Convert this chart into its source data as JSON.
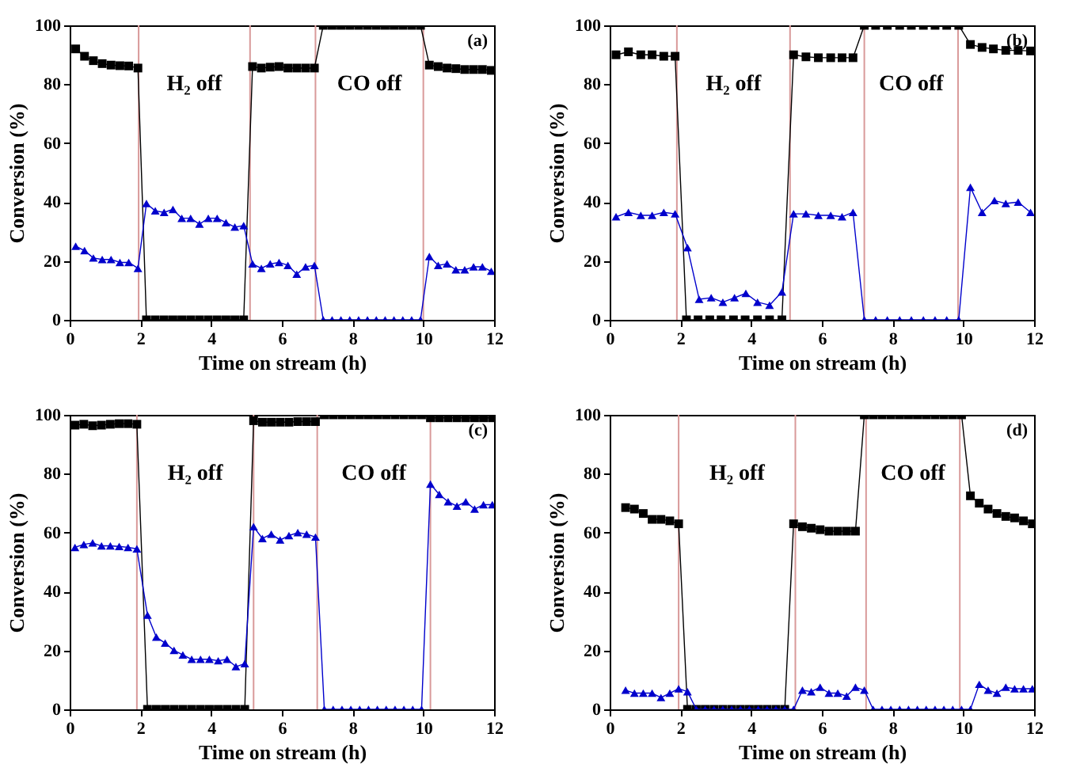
{
  "chart_data": [
    {
      "type": "line",
      "xlabel": "Time on stream (h)",
      "ylabel": "Conversion (%)",
      "xlim": [
        0,
        12
      ],
      "xticks": [
        0,
        2,
        4,
        6,
        8,
        10,
        12
      ],
      "ylim": [
        0,
        100
      ],
      "yticks": [
        0,
        20,
        40,
        60,
        80,
        100
      ],
      "annotations": [
        "H₂ off",
        "CO off",
        "(a)"
      ],
      "ref_lines": [
        {
          "axis": "x",
          "value": 1.95,
          "color": "#d99a9a"
        },
        {
          "axis": "x",
          "value": 5.1,
          "color": "#d99a9a"
        },
        {
          "axis": "x",
          "value": 6.95,
          "color": "#d99a9a"
        },
        {
          "axis": "x",
          "value": 10.0,
          "color": "#d99a9a"
        }
      ],
      "series": [
        {
          "color": "#000000",
          "marker": "square",
          "x": [
            0.17,
            0.42,
            0.67,
            0.92,
            1.17,
            1.42,
            1.67,
            1.93,
            2.17,
            2.42,
            2.67,
            2.92,
            3.17,
            3.42,
            3.67,
            3.92,
            4.17,
            4.42,
            4.67,
            4.92,
            5.17,
            5.42,
            5.67,
            5.92,
            6.17,
            6.42,
            6.67,
            6.92,
            7.17,
            7.42,
            7.67,
            7.92,
            8.17,
            8.42,
            8.67,
            8.92,
            9.17,
            9.42,
            9.67,
            9.92,
            10.17,
            10.42,
            10.67,
            10.92,
            11.17,
            11.42,
            11.67,
            11.92
          ],
          "values": [
            92,
            89.5,
            88,
            87,
            86.5,
            86.3,
            86.2,
            85.5,
            0,
            0,
            0,
            0,
            0,
            0,
            0,
            0,
            0,
            0,
            0,
            0,
            86,
            85.5,
            85.8,
            86,
            85.5,
            85.5,
            85.5,
            85.5,
            100,
            100,
            100,
            100,
            100,
            100,
            100,
            100,
            100,
            100,
            100,
            100,
            86.5,
            86,
            85.5,
            85.3,
            85,
            85,
            85,
            84.7
          ]
        },
        {
          "color": "#0000cc",
          "marker": "triangle",
          "x": [
            0.17,
            0.42,
            0.67,
            0.92,
            1.17,
            1.42,
            1.67,
            1.93,
            2.17,
            2.42,
            2.67,
            2.92,
            3.17,
            3.42,
            3.67,
            3.92,
            4.17,
            4.42,
            4.67,
            4.92,
            5.17,
            5.42,
            5.67,
            5.92,
            6.17,
            6.42,
            6.67,
            6.92,
            7.17,
            7.42,
            7.67,
            7.92,
            8.17,
            8.42,
            8.67,
            8.92,
            9.17,
            9.42,
            9.67,
            9.92,
            10.17,
            10.42,
            10.67,
            10.92,
            11.17,
            11.42,
            11.67,
            11.92
          ],
          "values": [
            25,
            23.5,
            21,
            20.5,
            20.5,
            19.5,
            19.5,
            17.5,
            39.5,
            37,
            36.5,
            37.5,
            34.5,
            34.5,
            32.5,
            34.5,
            34.5,
            33,
            31.5,
            32,
            19,
            17.5,
            19,
            19.5,
            18.5,
            15.5,
            18,
            18.5,
            0,
            0,
            0,
            0,
            0,
            0,
            0,
            0,
            0,
            0,
            0,
            0,
            21.5,
            18.5,
            19,
            17,
            17,
            18,
            18,
            16.5
          ]
        }
      ]
    },
    {
      "type": "line",
      "xlabel": "Time on stream (h)",
      "ylabel": "Conversion (%)",
      "xlim": [
        0,
        12
      ],
      "xticks": [
        0,
        2,
        4,
        6,
        8,
        10,
        12
      ],
      "ylim": [
        0,
        100
      ],
      "yticks": [
        0,
        20,
        40,
        60,
        80,
        100
      ],
      "annotations": [
        "H₂ off",
        "CO off",
        "(b)"
      ],
      "ref_lines": [
        {
          "axis": "x",
          "value": 1.9,
          "color": "#d99a9a"
        },
        {
          "axis": "x",
          "value": 5.1,
          "color": "#d99a9a"
        },
        {
          "axis": "x",
          "value": 7.2,
          "color": "#d99a9a"
        },
        {
          "axis": "x",
          "value": 9.85,
          "color": "#d99a9a"
        }
      ],
      "series": [
        {
          "color": "#000000",
          "marker": "square",
          "x": [
            0.18,
            0.53,
            0.88,
            1.2,
            1.53,
            1.85,
            2.17,
            2.5,
            2.83,
            3.15,
            3.5,
            3.83,
            4.18,
            4.52,
            4.87,
            5.2,
            5.55,
            5.9,
            6.25,
            6.57,
            6.88,
            7.2,
            7.52,
            7.85,
            8.2,
            8.53,
            8.87,
            9.2,
            9.53,
            9.87,
            10.2,
            10.53,
            10.85,
            11.2,
            11.55,
            11.9
          ],
          "values": [
            90,
            91,
            90,
            90,
            89.5,
            89.5,
            0,
            0,
            0,
            0,
            0,
            0,
            0,
            0,
            0,
            90,
            89.3,
            89,
            89,
            89,
            89,
            100,
            100,
            100,
            100,
            100,
            100,
            100,
            100,
            100,
            93.5,
            92.5,
            92,
            91.5,
            91.5,
            91.3
          ]
        },
        {
          "color": "#0000cc",
          "marker": "triangle",
          "x": [
            0.18,
            0.53,
            0.88,
            1.2,
            1.53,
            1.85,
            2.2,
            2.53,
            2.87,
            3.2,
            3.53,
            3.85,
            4.18,
            4.52,
            4.87,
            5.2,
            5.55,
            5.9,
            6.25,
            6.57,
            6.88,
            7.2,
            7.52,
            7.85,
            8.2,
            8.53,
            8.87,
            9.2,
            9.53,
            9.87,
            10.2,
            10.53,
            10.88,
            11.2,
            11.55,
            11.9
          ],
          "values": [
            35,
            36.5,
            35.5,
            35.5,
            36.5,
            36,
            24.5,
            7,
            7.5,
            6,
            7.5,
            9,
            6,
            5,
            9.5,
            36,
            36,
            35.5,
            35.5,
            35,
            36.5,
            0,
            0,
            0,
            0,
            0,
            0,
            0,
            0,
            0,
            45,
            36.5,
            40.5,
            39.5,
            40,
            36.5
          ]
        }
      ]
    },
    {
      "type": "line",
      "xlabel": "Time on stream (h)",
      "ylabel": "Conversion (%)",
      "xlim": [
        0,
        12
      ],
      "xticks": [
        0,
        2,
        4,
        6,
        8,
        10,
        12
      ],
      "ylim": [
        0,
        100
      ],
      "yticks": [
        0,
        20,
        40,
        60,
        80,
        100
      ],
      "annotations": [
        "H₂ off",
        "CO off",
        "(c)"
      ],
      "ref_lines": [
        {
          "axis": "x",
          "value": 1.9,
          "color": "#d99a9a"
        },
        {
          "axis": "x",
          "value": 5.2,
          "color": "#d99a9a"
        },
        {
          "axis": "x",
          "value": 7.0,
          "color": "#d99a9a"
        },
        {
          "axis": "x",
          "value": 10.2,
          "color": "#d99a9a"
        }
      ],
      "series": [
        {
          "color": "#000000",
          "marker": "square",
          "x": [
            0.15,
            0.4,
            0.65,
            0.9,
            1.15,
            1.4,
            1.65,
            1.9,
            2.2,
            2.45,
            2.7,
            2.95,
            3.2,
            3.45,
            3.7,
            3.95,
            4.2,
            4.45,
            4.7,
            4.95,
            5.2,
            5.45,
            5.7,
            5.95,
            6.2,
            6.45,
            6.7,
            6.95,
            7.2,
            7.45,
            7.7,
            7.95,
            8.2,
            8.45,
            8.7,
            8.95,
            9.2,
            9.45,
            9.7,
            9.95,
            10.2,
            10.45,
            10.7,
            10.95,
            11.2,
            11.45,
            11.7,
            11.95
          ],
          "values": [
            96.5,
            96.8,
            96.3,
            96.5,
            96.8,
            97,
            97,
            96.8,
            0,
            0,
            0,
            0,
            0,
            0,
            0,
            0,
            0,
            0,
            0,
            0,
            98,
            97.5,
            97.5,
            97.5,
            97.5,
            97.7,
            97.7,
            97.7,
            100,
            100,
            100,
            100,
            100,
            100,
            100,
            100,
            100,
            100,
            100,
            100,
            99,
            99,
            99,
            99,
            99,
            99,
            99,
            99
          ]
        },
        {
          "color": "#0000cc",
          "marker": "triangle",
          "x": [
            0.15,
            0.4,
            0.65,
            0.9,
            1.15,
            1.4,
            1.65,
            1.9,
            2.2,
            2.45,
            2.7,
            2.95,
            3.2,
            3.45,
            3.7,
            3.95,
            4.2,
            4.45,
            4.7,
            4.95,
            5.2,
            5.45,
            5.7,
            5.95,
            6.2,
            6.45,
            6.7,
            6.95,
            7.2,
            7.45,
            7.7,
            7.95,
            8.2,
            8.45,
            8.7,
            8.95,
            9.2,
            9.45,
            9.7,
            9.95,
            10.2,
            10.45,
            10.7,
            10.95,
            11.2,
            11.45,
            11.7,
            11.95
          ],
          "values": [
            55,
            56,
            56.5,
            55.5,
            55.5,
            55.3,
            55,
            54.5,
            32,
            24.5,
            22.5,
            20,
            18.5,
            17,
            17,
            17,
            16.5,
            17,
            14.5,
            15.5,
            62,
            58,
            59.5,
            57.5,
            59,
            60,
            59.5,
            58.5,
            0,
            0,
            0,
            0,
            0,
            0,
            0,
            0,
            0,
            0,
            0,
            0,
            76.5,
            73,
            70.5,
            69,
            70.5,
            68,
            69.5,
            69.5
          ]
        }
      ]
    },
    {
      "type": "line",
      "xlabel": "Time on stream (h)",
      "ylabel": "Conversion (%)",
      "xlim": [
        0,
        12
      ],
      "xticks": [
        0,
        2,
        4,
        6,
        8,
        10,
        12
      ],
      "ylim": [
        0,
        100
      ],
      "yticks": [
        0,
        20,
        40,
        60,
        80,
        100
      ],
      "annotations": [
        "H₂ off",
        "CO off",
        "(d)"
      ],
      "ref_lines": [
        {
          "axis": "x",
          "value": 1.95,
          "color": "#d99a9a"
        },
        {
          "axis": "x",
          "value": 5.25,
          "color": "#d99a9a"
        },
        {
          "axis": "x",
          "value": 7.25,
          "color": "#d99a9a"
        },
        {
          "axis": "x",
          "value": 9.9,
          "color": "#d99a9a"
        }
      ],
      "series": [
        {
          "color": "#000000",
          "marker": "square",
          "x": [
            0.45,
            0.7,
            0.95,
            1.2,
            1.45,
            1.7,
            1.95,
            2.2,
            2.45,
            2.7,
            2.95,
            3.2,
            3.45,
            3.7,
            3.95,
            4.2,
            4.45,
            4.7,
            4.95,
            5.2,
            5.45,
            5.7,
            5.95,
            6.2,
            6.45,
            6.7,
            6.95,
            7.2,
            7.45,
            7.7,
            7.95,
            8.2,
            8.45,
            8.7,
            8.95,
            9.2,
            9.45,
            9.7,
            9.95,
            10.2,
            10.45,
            10.7,
            10.95,
            11.2,
            11.45,
            11.7,
            11.95
          ],
          "values": [
            68.5,
            68,
            66.5,
            64.5,
            64.5,
            64,
            63,
            0,
            0,
            0,
            0,
            0,
            0,
            0,
            0,
            0,
            0,
            0,
            0,
            63,
            62,
            61.5,
            61,
            60.5,
            60.5,
            60.5,
            60.5,
            100,
            100,
            100,
            100,
            100,
            100,
            100,
            100,
            100,
            100,
            100,
            100,
            72.5,
            70,
            68,
            66.5,
            65.5,
            65,
            64,
            63
          ]
        },
        {
          "color": "#0000cc",
          "marker": "triangle",
          "x": [
            0.45,
            0.7,
            0.95,
            1.2,
            1.45,
            1.7,
            1.95,
            2.2,
            2.45,
            2.7,
            2.95,
            3.2,
            3.45,
            3.7,
            3.95,
            4.2,
            4.45,
            4.7,
            4.95,
            5.2,
            5.45,
            5.7,
            5.95,
            6.2,
            6.45,
            6.7,
            6.95,
            7.2,
            7.45,
            7.7,
            7.95,
            8.2,
            8.45,
            8.7,
            8.95,
            9.2,
            9.45,
            9.7,
            9.95,
            10.2,
            10.45,
            10.7,
            10.95,
            11.2,
            11.45,
            11.7,
            11.95
          ],
          "values": [
            6.5,
            5.5,
            5.5,
            5.5,
            4,
            5.5,
            7,
            6,
            0,
            0,
            0,
            0,
            0,
            0,
            0,
            0,
            0,
            0,
            0,
            0,
            6.5,
            6,
            7.5,
            5.5,
            5.5,
            4.5,
            7.5,
            6.5,
            0,
            0,
            0,
            0,
            0,
            0,
            0,
            0,
            0,
            0,
            0,
            0,
            8.5,
            6.5,
            5.5,
            7.5,
            7,
            7,
            7
          ]
        }
      ]
    }
  ]
}
